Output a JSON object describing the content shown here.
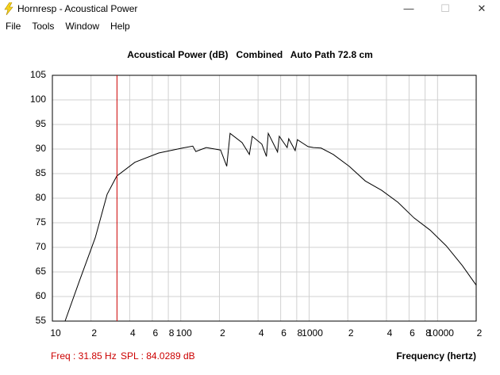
{
  "window": {
    "title": "Hornresp - Acoustical Power",
    "menu": [
      "File",
      "Tools",
      "Window",
      "Help"
    ]
  },
  "chart_data": {
    "type": "line",
    "title": "Acoustical Power (dB)   Combined   Auto Path 72.8 cm",
    "x_label": "Frequency (hertz)",
    "xscale": "log",
    "grid": true,
    "xlim": [
      10,
      20000
    ],
    "ylim": [
      55,
      105
    ],
    "xticks": [
      10,
      {
        "value": 20,
        "label": "2"
      },
      {
        "value": 40,
        "label": "4"
      },
      {
        "value": 60,
        "label": "6"
      },
      {
        "value": 80,
        "label": "8"
      },
      100,
      {
        "value": 200,
        "label": "2"
      },
      {
        "value": 400,
        "label": "4"
      },
      {
        "value": 600,
        "label": "6"
      },
      {
        "value": 800,
        "label": "8"
      },
      1000,
      {
        "value": 2000,
        "label": "2"
      },
      {
        "value": 4000,
        "label": "4"
      },
      {
        "value": 6000,
        "label": "6"
      },
      {
        "value": 8000,
        "label": "8"
      },
      10000,
      {
        "value": 20000,
        "label": "2"
      }
    ],
    "yticks": [
      55,
      60,
      65,
      70,
      75,
      80,
      85,
      90,
      95,
      100,
      105
    ],
    "cursor": {
      "x": 31.85,
      "color": "#cc0000"
    },
    "series": [
      {
        "color": "#000000",
        "x": [
          12.56,
          16.2,
          21.6,
          26.7,
          31.7,
          43.9,
          67.3,
          103,
          124,
          131,
          158,
          204,
          228,
          242,
          300,
          342,
          360,
          428,
          465,
          480,
          553,
          567,
          585,
          674,
          693,
          778,
          810,
          980,
          1080,
          1240,
          1540,
          2050,
          2740,
          3670,
          4900,
          6550,
          8760,
          11700,
          15600,
          20000
        ],
        "values": [
          55,
          63.1,
          72,
          80.8,
          84.5,
          87.3,
          89.2,
          90.2,
          90.6,
          89.5,
          90.3,
          89.8,
          86.5,
          93.2,
          91.3,
          88.9,
          92.6,
          91,
          88.5,
          93.2,
          90,
          89.4,
          92.6,
          90.3,
          92.1,
          89.7,
          91.9,
          90.5,
          90.3,
          90.2,
          88.9,
          86.5,
          83.5,
          81.6,
          79.2,
          76,
          73.5,
          70.3,
          66.3,
          62.3
        ]
      }
    ]
  },
  "status": {
    "freq": "Freq : 31.85 Hz",
    "spl": "SPL : 84.0289 dB"
  }
}
